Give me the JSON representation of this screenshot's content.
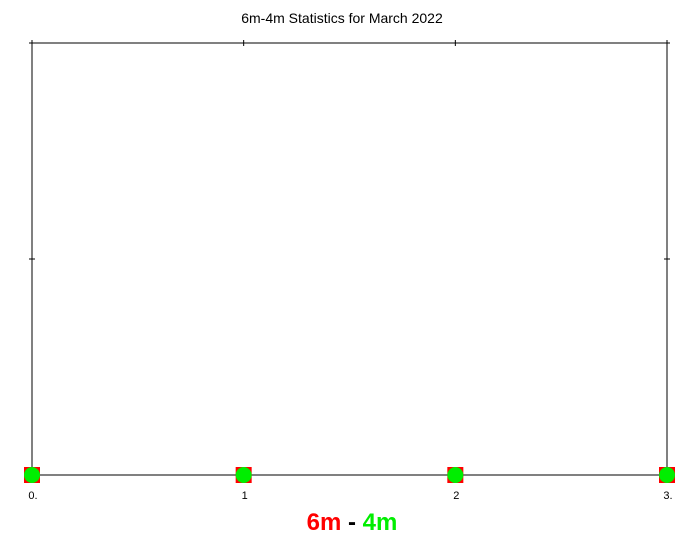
{
  "chart_data": {
    "type": "scatter",
    "title": "6m-4m Statistics for March 2022",
    "xlabel": "",
    "ylabel": "",
    "xlim": [
      0,
      3
    ],
    "ylim": [
      0,
      2
    ],
    "x_tick_labels": [
      "0.",
      "1",
      "2",
      "3."
    ],
    "x_ticks": [
      0,
      1,
      2,
      3
    ],
    "y_ticks": [
      0,
      1,
      2
    ],
    "grid": false,
    "legend_position": "bottom-center",
    "legend": {
      "series_a": "6m",
      "separator": " - ",
      "series_b": "4m"
    },
    "series": [
      {
        "name": "6m",
        "marker": "square",
        "color": "#ff0000",
        "x": [
          0,
          1,
          2,
          3
        ],
        "y": [
          0,
          0,
          0,
          0
        ]
      },
      {
        "name": "4m",
        "marker": "circle",
        "color": "#00ee00",
        "x": [
          0,
          1,
          2,
          3
        ],
        "y": [
          0,
          0,
          0,
          0
        ]
      }
    ],
    "colors": {
      "series_a": "#ff0000",
      "series_b": "#00ee00",
      "separator": "#000000",
      "axis": "#000000"
    }
  }
}
